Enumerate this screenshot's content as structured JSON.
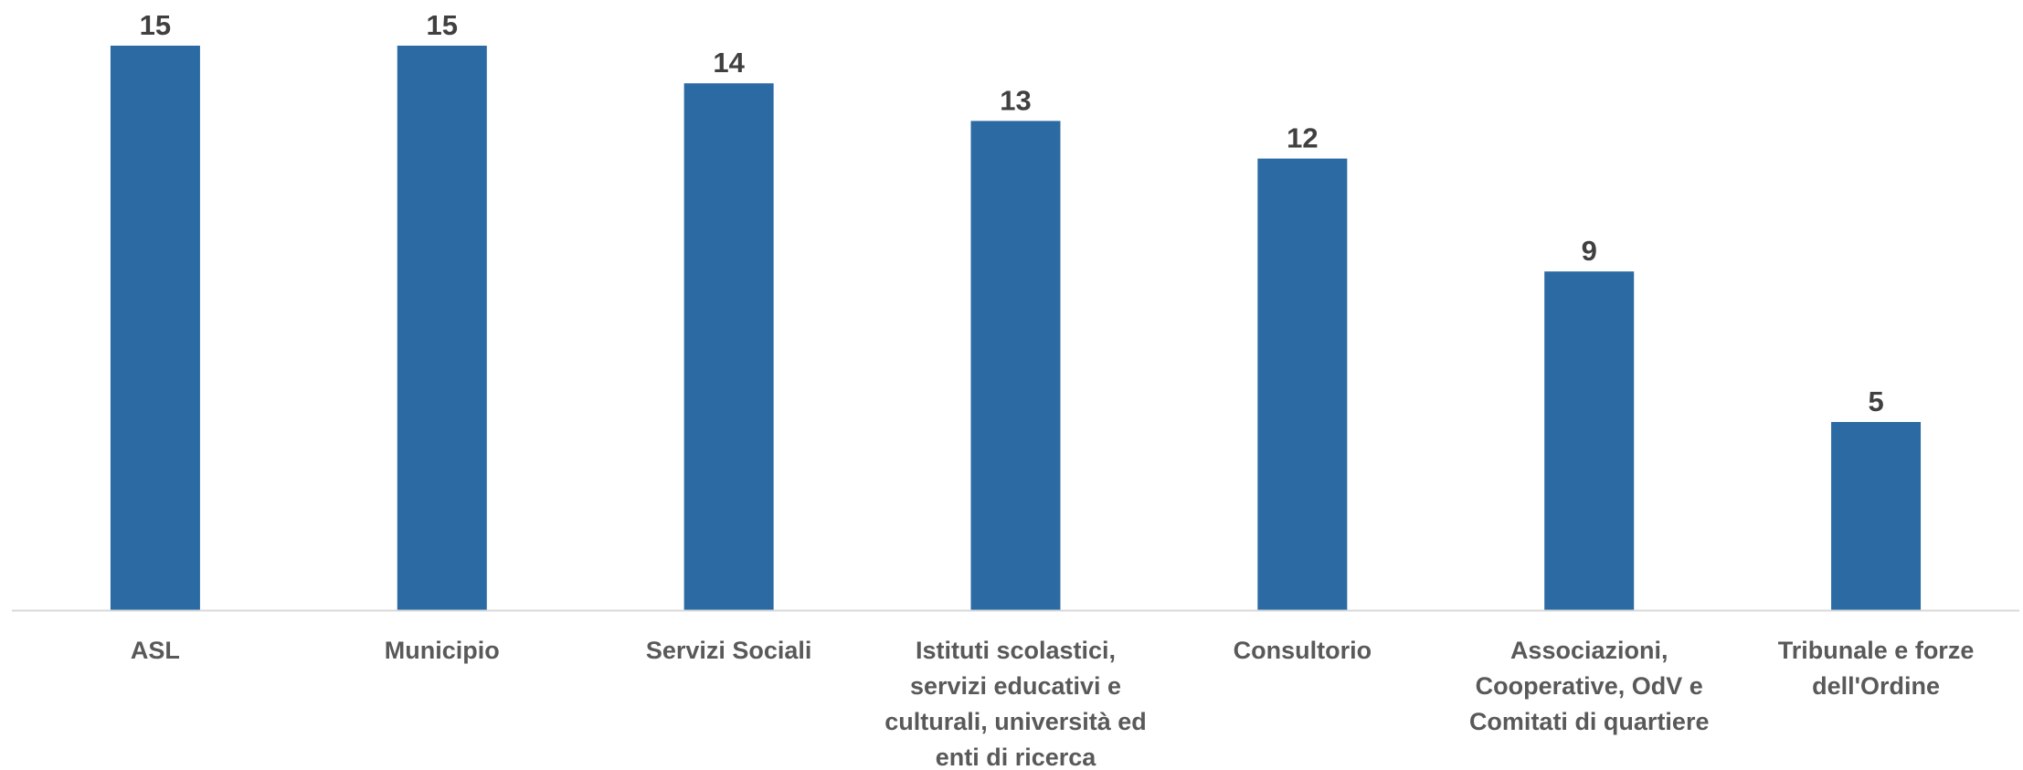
{
  "chart_data": {
    "type": "bar",
    "categories": [
      [
        "ASL"
      ],
      [
        "Municipio"
      ],
      [
        "Servizi Sociali"
      ],
      [
        "Istituti scolastici,",
        "servizi educativi e",
        "culturali, università ed",
        "enti di ricerca"
      ],
      [
        "Consultorio"
      ],
      [
        "Associazioni,",
        "Cooperative, OdV e",
        "Comitati di quartiere"
      ],
      [
        "Tribunale e forze",
        "dell'Ordine"
      ]
    ],
    "values": [
      15,
      15,
      14,
      13,
      12,
      9,
      5
    ],
    "ylim": [
      0,
      16
    ],
    "grid": false,
    "legend": "none",
    "bar_color": "#2b6aa3",
    "axis_color": "#d9d9d9"
  }
}
